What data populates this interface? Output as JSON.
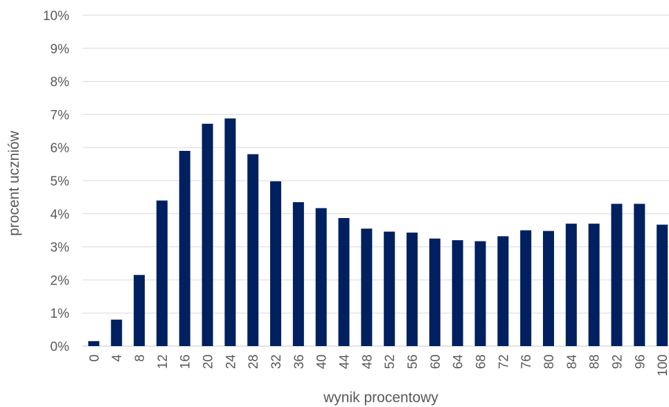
{
  "chart_data": {
    "type": "bar",
    "title": "",
    "xlabel": "wynik procentowy",
    "ylabel": "procent uczniów",
    "categories": [
      "0",
      "4",
      "8",
      "12",
      "16",
      "20",
      "24",
      "28",
      "32",
      "36",
      "40",
      "44",
      "48",
      "52",
      "56",
      "60",
      "64",
      "68",
      "72",
      "76",
      "80",
      "84",
      "88",
      "92",
      "96",
      "100"
    ],
    "values": [
      0.15,
      0.8,
      2.15,
      4.4,
      5.9,
      6.72,
      6.88,
      5.8,
      4.98,
      4.35,
      4.17,
      3.87,
      3.55,
      3.46,
      3.43,
      3.25,
      3.2,
      3.17,
      3.32,
      3.5,
      3.48,
      3.7,
      3.7,
      4.3,
      4.3,
      3.67
    ],
    "ylim": [
      0,
      10
    ],
    "yticks": [
      "0%",
      "1%",
      "2%",
      "3%",
      "4%",
      "5%",
      "6%",
      "7%",
      "8%",
      "9%",
      "10%"
    ],
    "grid": true,
    "legend": "none",
    "bar_color": "#002060",
    "grid_color": "#d9d9d9"
  }
}
